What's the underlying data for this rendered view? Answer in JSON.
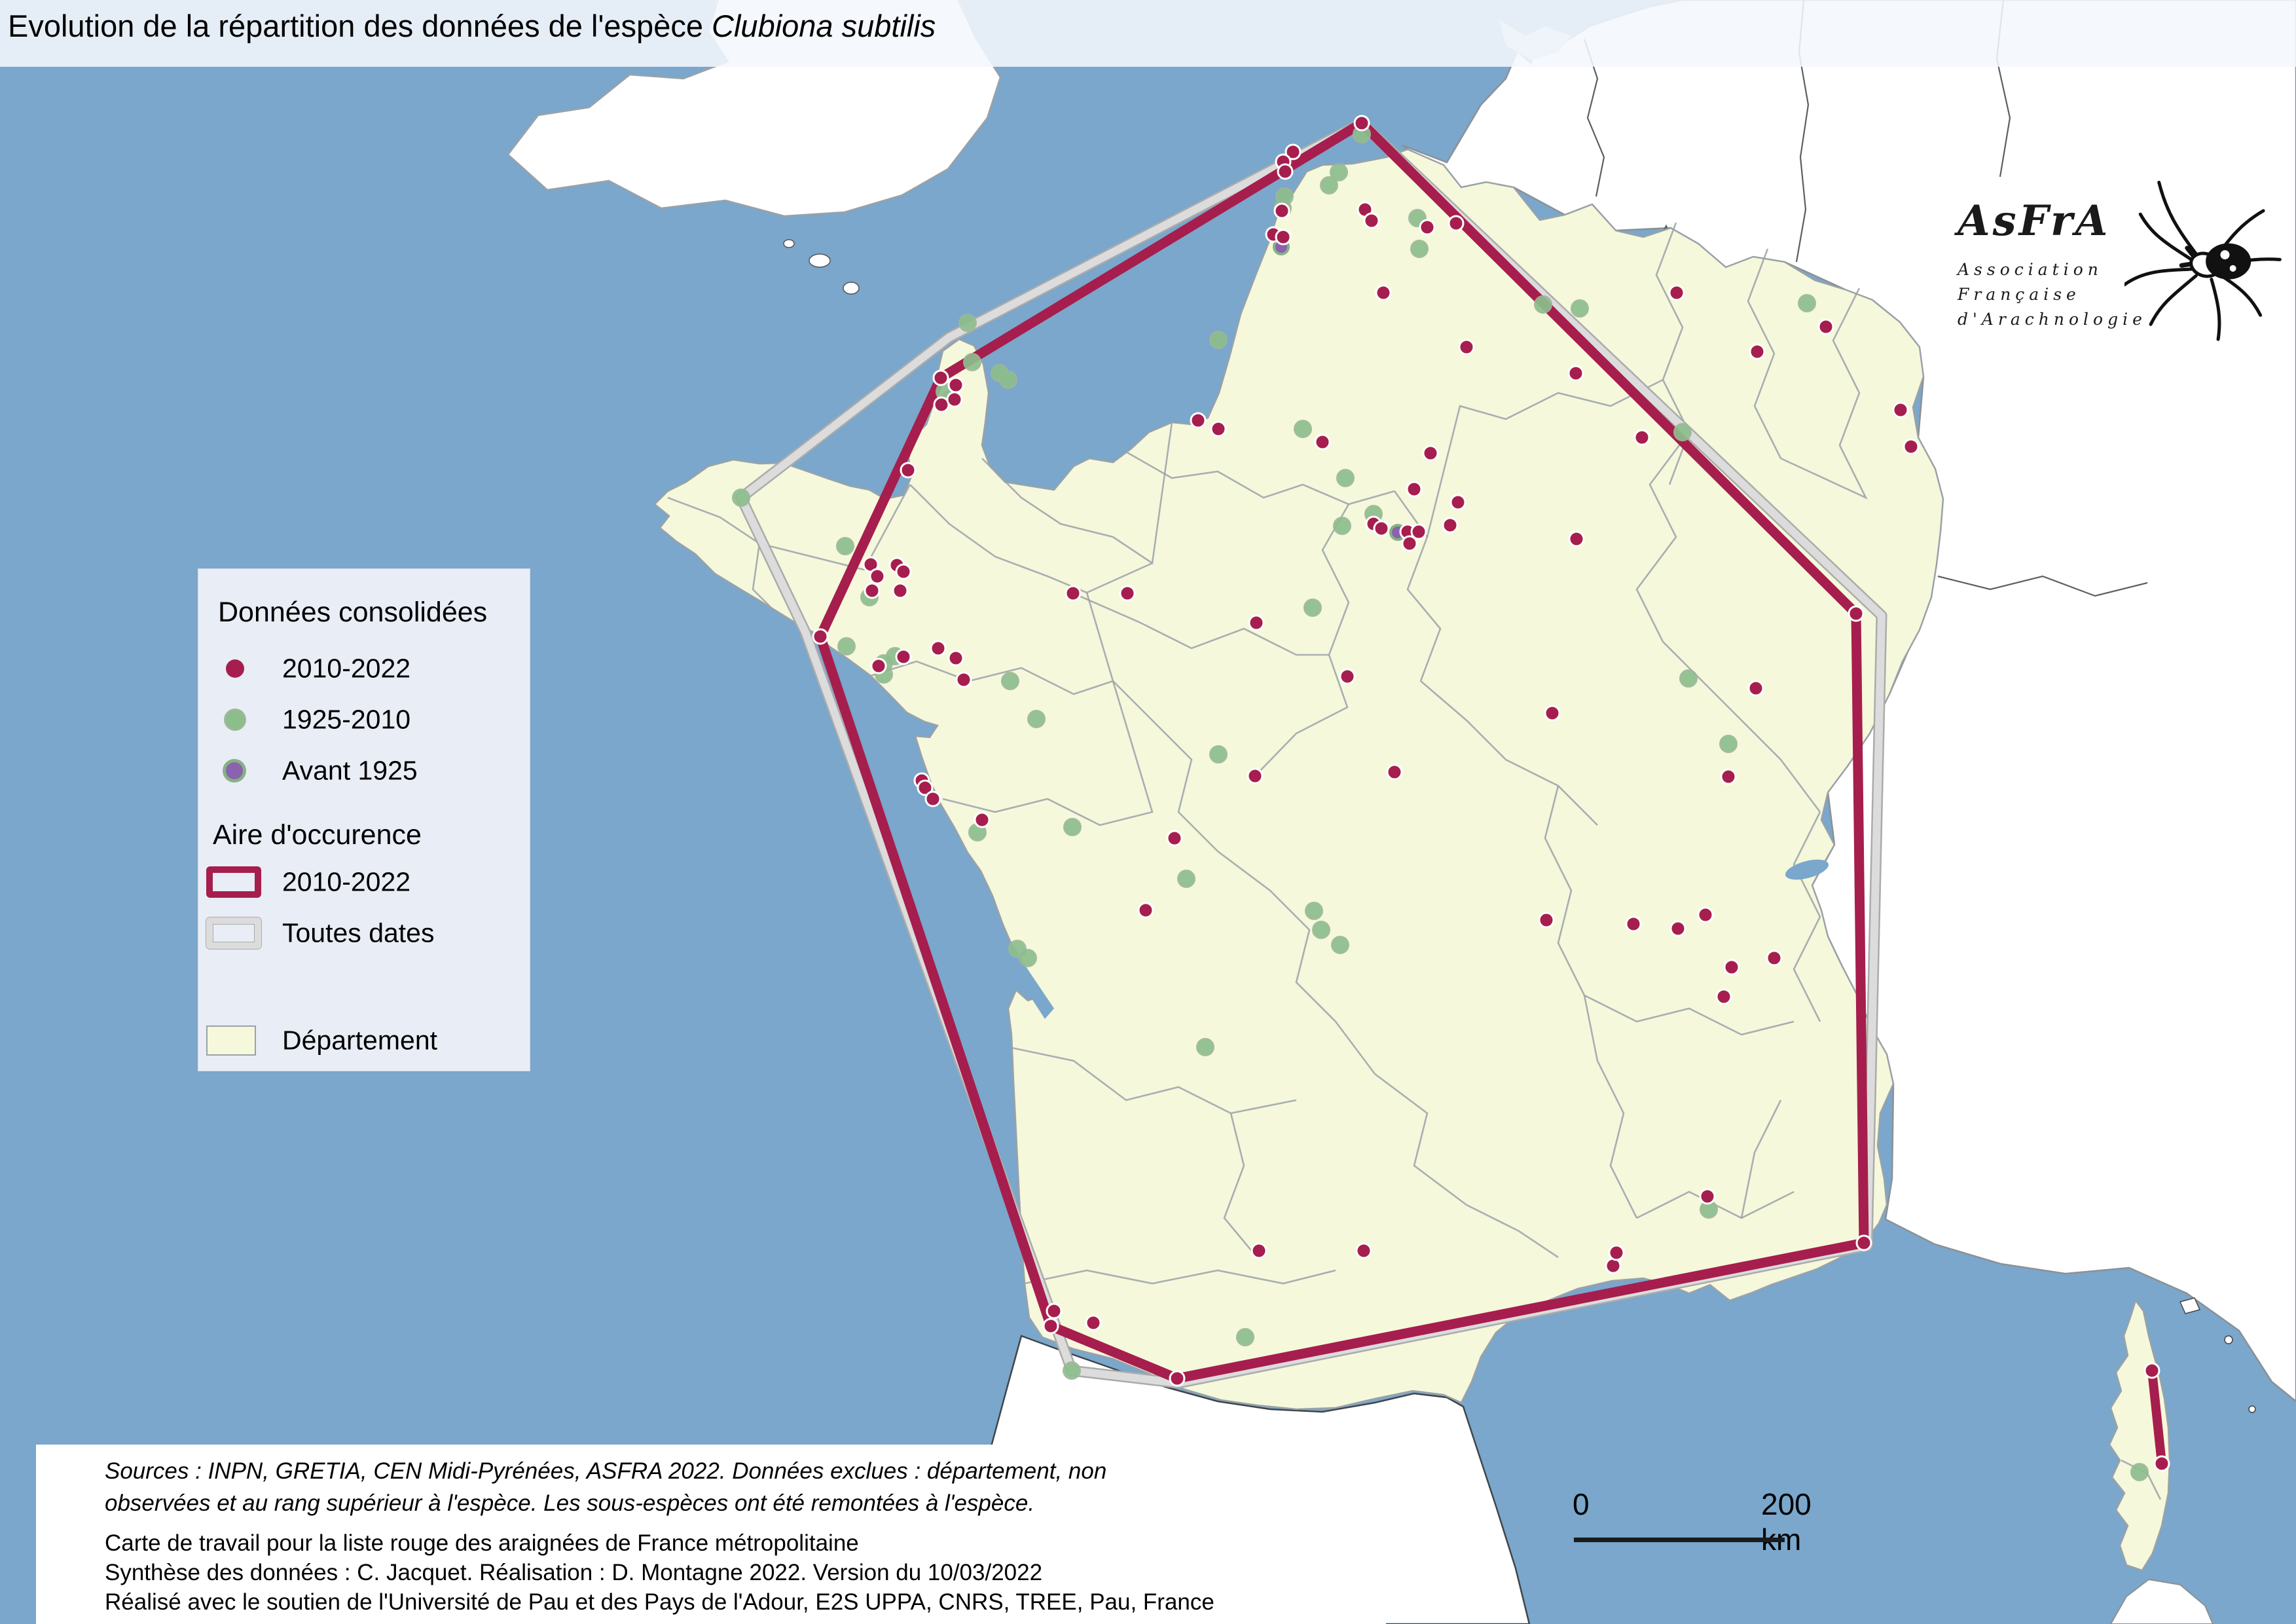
{
  "title": {
    "prefix": "Evolution de la répartition des données de l'espèce ",
    "species": "Clubiona subtilis"
  },
  "legend": {
    "consolidated_title": "Données consolidées",
    "items": [
      {
        "label": "2010-2022",
        "color": "#A61E4D"
      },
      {
        "label": "1925-2010",
        "color": "#8CBE8C"
      },
      {
        "label": "Avant 1925",
        "color": "#8A62AE"
      }
    ],
    "area_title": "Aire d'occurence",
    "area_items": [
      {
        "label": "2010-2022",
        "color": "#A61E4D"
      },
      {
        "label": "Toutes dates",
        "color": "#DCDCDC"
      }
    ],
    "department_label": "Département",
    "department_color": "#F5F8DB"
  },
  "logo": {
    "name": "AsFrA",
    "line1": "Association",
    "line2": "Française",
    "line3": "d'Arachnologie"
  },
  "scalebar": {
    "zero": "0",
    "end": "200 km"
  },
  "footer": {
    "sources_line1": "Sources : INPN, GRETIA, CEN Midi-Pyrénées, ASFRA 2022. Données exclues : département, non",
    "sources_line2": "observées et au rang supérieur à l'espèce. Les sous-espèces ont été remontées à l'espèce.",
    "work_line1": "Carte de travail pour la liste rouge des araignées de France métropolitaine",
    "work_line2": "Synthèse des données : C. Jacquet. Réalisation : D. Montagne 2022. Version du 10/03/2022",
    "work_line3": "Réalisé avec le soutien de l'Université de Pau et des Pays de l'Adour, E2S UPPA, CNRS, TREE, Pau, France"
  },
  "map": {
    "colors": {
      "sea": "#7AA7CB",
      "france": "#F5F8DB",
      "neighbor": "#FFFFFF",
      "dept_border": "#9BA2A8",
      "country_border": "#565D63",
      "crimson": "#A61E4D",
      "gray_area": "#DCDCDC",
      "gray_area_edge": "#ABABAB",
      "green": "#8CBE8C",
      "green_edge": "#9FB69B",
      "purple": "#8A62AE",
      "purple_edge": "#86B283",
      "dot_ring": "#FFFFFF"
    },
    "points": {
      "red": [
        [
          2080,
          188
        ],
        [
          1975,
          232
        ],
        [
          1960,
          247
        ],
        [
          1963,
          262
        ],
        [
          1958,
          322
        ],
        [
          1945,
          358
        ],
        [
          1960,
          362
        ],
        [
          2085,
          320
        ],
        [
          2095,
          337
        ],
        [
          2180,
          347
        ],
        [
          2224,
          341
        ],
        [
          2113,
          447
        ],
        [
          2240,
          530
        ],
        [
          1830,
          642
        ],
        [
          1861,
          655
        ],
        [
          1437,
          577
        ],
        [
          1460,
          588
        ],
        [
          1438,
          618
        ],
        [
          1458,
          610
        ],
        [
          1387,
          718
        ],
        [
          1330,
          862
        ],
        [
          1340,
          880
        ],
        [
          1332,
          902
        ],
        [
          1639,
          906
        ],
        [
          1370,
          863
        ],
        [
          1380,
          873
        ],
        [
          1375,
          902
        ],
        [
          1253,
          972
        ],
        [
          1380,
          1003
        ],
        [
          1342,
          1017
        ],
        [
          1433,
          990
        ],
        [
          1460,
          1005
        ],
        [
          1472,
          1038
        ],
        [
          1408,
          1192
        ],
        [
          1413,
          1203
        ],
        [
          1425,
          1220
        ],
        [
          1500,
          1252
        ],
        [
          2020,
          675
        ],
        [
          2185,
          692
        ],
        [
          2160,
          747
        ],
        [
          2227,
          767
        ],
        [
          2098,
          800
        ],
        [
          2110,
          807
        ],
        [
          2150,
          812
        ],
        [
          2167,
          812
        ],
        [
          2153,
          830
        ],
        [
          2215,
          802
        ],
        [
          2408,
          823
        ],
        [
          1722,
          906
        ],
        [
          1919,
          951
        ],
        [
          2058,
          1033
        ],
        [
          1917,
          1185
        ],
        [
          2130,
          1179
        ],
        [
          1794,
          1280
        ],
        [
          1750,
          1390
        ],
        [
          2561,
          447
        ],
        [
          2407,
          570
        ],
        [
          2684,
          537
        ],
        [
          2789,
          499
        ],
        [
          2903,
          626
        ],
        [
          2919,
          682
        ],
        [
          2508,
          668
        ],
        [
          2371,
          1089
        ],
        [
          2682,
          1051
        ],
        [
          2640,
          1186
        ],
        [
          2835,
          937
        ],
        [
          2362,
          1405
        ],
        [
          2495,
          1411
        ],
        [
          2563,
          1418
        ],
        [
          2605,
          1397
        ],
        [
          2645,
          1477
        ],
        [
          2710,
          1463
        ],
        [
          2633,
          1522
        ],
        [
          2608,
          1827
        ],
        [
          2847,
          1898
        ],
        [
          2083,
          1910
        ],
        [
          2464,
          1933
        ],
        [
          2469,
          1913
        ],
        [
          1923,
          1910
        ],
        [
          1610,
          2002
        ],
        [
          1670,
          2020
        ],
        [
          1605,
          2025
        ],
        [
          1798,
          2105
        ],
        [
          3287,
          2093
        ],
        [
          3302,
          2235
        ]
      ],
      "green": [
        [
          2080,
          205
        ],
        [
          2045,
          263
        ],
        [
          2030,
          283
        ],
        [
          1962,
          300
        ],
        [
          1959,
          318
        ],
        [
          2165,
          333
        ],
        [
          2168,
          380
        ],
        [
          2357,
          465
        ],
        [
          2413,
          471
        ],
        [
          2570,
          660
        ],
        [
          1861,
          519
        ],
        [
          1478,
          493
        ],
        [
          1485,
          553
        ],
        [
          1527,
          570
        ],
        [
          1540,
          580
        ],
        [
          1443,
          598
        ],
        [
          1453,
          607
        ],
        [
          1132,
          760
        ],
        [
          1291,
          834
        ],
        [
          1328,
          912
        ],
        [
          1293,
          987
        ],
        [
          1367,
          1002
        ],
        [
          1350,
          1013
        ],
        [
          1350,
          1030
        ],
        [
          1543,
          1040
        ],
        [
          1583,
          1098
        ],
        [
          1638,
          1263
        ],
        [
          1493,
          1271
        ],
        [
          1990,
          655
        ],
        [
          2055,
          730
        ],
        [
          2098,
          785
        ],
        [
          2050,
          803
        ],
        [
          2005,
          928
        ],
        [
          1861,
          1152
        ],
        [
          2579,
          1036
        ],
        [
          2640,
          1136
        ],
        [
          2760,
          463
        ],
        [
          1812,
          1342
        ],
        [
          2007,
          1391
        ],
        [
          2018,
          1420
        ],
        [
          2047,
          1443
        ],
        [
          1554,
          1449
        ],
        [
          1570,
          1463
        ],
        [
          1841,
          1599
        ],
        [
          1902,
          2042
        ],
        [
          1637,
          2093
        ],
        [
          2610,
          1847
        ],
        [
          3268,
          2248
        ]
      ],
      "purple": [
        [
          1957,
          377
        ],
        [
          2135,
          813
        ]
      ]
    },
    "polygons": {
      "recent": [
        [
          2080,
          188
        ],
        [
          1437,
          577
        ],
        [
          1253,
          972
        ],
        [
          1605,
          2025
        ],
        [
          1798,
          2105
        ],
        [
          2847,
          1898
        ],
        [
          2835,
          937
        ]
      ],
      "all_dates": [
        [
          2080,
          188
        ],
        [
          1450,
          515
        ],
        [
          1132,
          760
        ],
        [
          1230,
          965
        ],
        [
          1637,
          2093
        ],
        [
          1800,
          2112
        ],
        [
          2852,
          1902
        ],
        [
          2874,
          940
        ]
      ],
      "corsica_recent": [
        [
          3287,
          2093
        ],
        [
          3302,
          2235
        ]
      ]
    }
  }
}
